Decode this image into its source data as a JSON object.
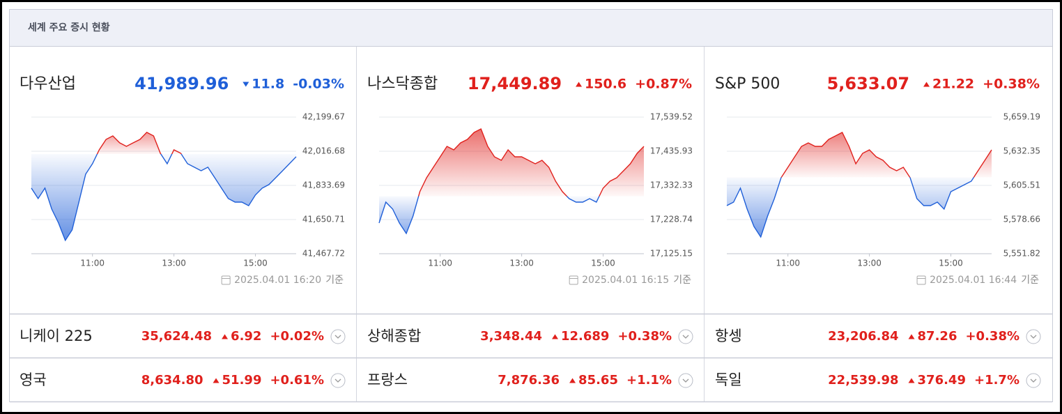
{
  "header": {
    "title": "세계 주요 증시 현황"
  },
  "colors": {
    "up": "#e0201c",
    "down": "#1f5fd8"
  },
  "main_indices": [
    {
      "name": "다우산업",
      "price": "41,989.96",
      "direction": "down",
      "change": "11.8",
      "change_pct": "-0.03%",
      "time": "2025.04.01 16:20",
      "time_suffix": "기준",
      "chart_data": {
        "type": "line",
        "x": [
          "09:30",
          "09:40",
          "09:50",
          "10:00",
          "10:10",
          "10:20",
          "10:30",
          "10:40",
          "10:50",
          "11:00",
          "11:10",
          "11:20",
          "11:30",
          "11:40",
          "11:50",
          "12:00",
          "12:10",
          "12:20",
          "12:30",
          "12:40",
          "12:50",
          "13:00",
          "13:10",
          "13:20",
          "13:30",
          "13:40",
          "13:50",
          "14:00",
          "14:10",
          "14:20",
          "14:30",
          "14:40",
          "14:50",
          "15:00",
          "15:10",
          "15:20",
          "15:30",
          "15:40",
          "15:50",
          "16:00"
        ],
        "values": [
          41819,
          41763,
          41819,
          41707,
          41632,
          41539,
          41595,
          41744,
          41894,
          41950,
          42024,
          42080,
          42099,
          42062,
          42043,
          42062,
          42080,
          42118,
          42099,
          42006,
          41950,
          42024,
          42006,
          41950,
          41931,
          41912,
          41931,
          41875,
          41819,
          41763,
          41744,
          41744,
          41725,
          41782,
          41819,
          41838,
          41875,
          41912,
          41950,
          41987
        ],
        "baseline": 42001.76,
        "xlim": [
          "09:30",
          "16:00"
        ],
        "xticks": [
          "11:00",
          "13:00",
          "15:00"
        ],
        "ylim": [
          41467.72,
          42199.67
        ],
        "yticks": [
          {
            "value": 42199.67,
            "label": "42,199.67"
          },
          {
            "value": 42016.68,
            "label": "42,016.68"
          },
          {
            "value": 41833.69,
            "label": "41,833.69"
          },
          {
            "value": 41650.71,
            "label": "41,650.71"
          },
          {
            "value": 41467.72,
            "label": "41,467.72"
          }
        ],
        "grid": true
      }
    },
    {
      "name": "나스닥종합",
      "price": "17,449.89",
      "direction": "up",
      "change": "150.6",
      "change_pct": "+0.87%",
      "time": "2025.04.01 16:15",
      "time_suffix": "기준",
      "chart_data": {
        "type": "line",
        "x": [
          "09:30",
          "09:40",
          "09:50",
          "10:00",
          "10:10",
          "10:20",
          "10:30",
          "10:40",
          "10:50",
          "11:00",
          "11:10",
          "11:20",
          "11:30",
          "11:40",
          "11:50",
          "12:00",
          "12:10",
          "12:20",
          "12:30",
          "12:40",
          "12:50",
          "13:00",
          "13:10",
          "13:20",
          "13:30",
          "13:40",
          "13:50",
          "14:00",
          "14:10",
          "14:20",
          "14:30",
          "14:40",
          "14:50",
          "15:00",
          "15:10",
          "15:20",
          "15:30",
          "15:40",
          "15:50",
          "16:00"
        ],
        "values": [
          17218.2,
          17281.6,
          17260.5,
          17218.2,
          17186.5,
          17239.3,
          17313.3,
          17355.6,
          17387.3,
          17419,
          17450.7,
          17440.1,
          17461.3,
          17471.9,
          17493,
          17503.6,
          17450.7,
          17419,
          17408.4,
          17440.1,
          17419,
          17419,
          17408.4,
          17397.9,
          17408.4,
          17387.3,
          17345,
          17313.3,
          17292.2,
          17281.6,
          17281.6,
          17292.2,
          17281.6,
          17323.9,
          17345,
          17355.6,
          17376.7,
          17397.9,
          17429.6,
          17450.7
        ],
        "baseline": 17299.29,
        "xlim": [
          "09:30",
          "16:00"
        ],
        "xticks": [
          "11:00",
          "13:00",
          "15:00"
        ],
        "ylim": [
          17125.15,
          17539.52
        ],
        "yticks": [
          {
            "value": 17539.52,
            "label": "17,539.52"
          },
          {
            "value": 17435.93,
            "label": "17,435.93"
          },
          {
            "value": 17332.33,
            "label": "17,332.33"
          },
          {
            "value": 17228.74,
            "label": "17,228.74"
          },
          {
            "value": 17125.15,
            "label": "17,125.15"
          }
        ],
        "grid": true
      }
    },
    {
      "name": "S&P 500",
      "price": "5,633.07",
      "direction": "up",
      "change": "21.22",
      "change_pct": "+0.38%",
      "time": "2025.04.01 16:44",
      "time_suffix": "기준",
      "chart_data": {
        "type": "line",
        "x": [
          "09:30",
          "09:40",
          "09:50",
          "10:00",
          "10:10",
          "10:20",
          "10:30",
          "10:40",
          "10:50",
          "11:00",
          "11:10",
          "11:20",
          "11:30",
          "11:40",
          "11:50",
          "12:00",
          "12:10",
          "12:20",
          "12:30",
          "12:40",
          "12:50",
          "13:00",
          "13:10",
          "13:20",
          "13:30",
          "13:40",
          "13:50",
          "14:00",
          "14:10",
          "14:20",
          "14:30",
          "14:40",
          "14:50",
          "15:00",
          "15:10",
          "15:20",
          "15:30",
          "15:40",
          "15:50",
          "16:00"
        ],
        "values": [
          5589.62,
          5592.36,
          5603.31,
          5586.88,
          5573.19,
          5564.97,
          5581.4,
          5595.1,
          5611.53,
          5619.75,
          5627.97,
          5636.18,
          5638.92,
          5636.18,
          5636.18,
          5641.66,
          5644.4,
          5647.14,
          5636.18,
          5622.49,
          5630.7,
          5633.44,
          5627.97,
          5625.23,
          5619.75,
          5617.01,
          5619.75,
          5611.53,
          5595.1,
          5589.62,
          5589.62,
          5592.36,
          5586.88,
          5600.58,
          5603.31,
          5606.05,
          5608.79,
          5617.01,
          5625.23,
          5633.44
        ],
        "baseline": 5611.85,
        "xlim": [
          "09:30",
          "16:00"
        ],
        "xticks": [
          "11:00",
          "13:00",
          "15:00"
        ],
        "ylim": [
          5551.82,
          5659.19
        ],
        "yticks": [
          {
            "value": 5659.19,
            "label": "5,659.19"
          },
          {
            "value": 5632.35,
            "label": "5,632.35"
          },
          {
            "value": 5605.51,
            "label": "5,605.51"
          },
          {
            "value": 5578.66,
            "label": "5,578.66"
          },
          {
            "value": 5551.82,
            "label": "5,551.82"
          }
        ],
        "grid": true
      }
    }
  ],
  "other_indices": [
    {
      "name": "니케이 225",
      "price": "35,624.48",
      "direction": "up",
      "change": "6.92",
      "change_pct": "+0.02%"
    },
    {
      "name": "상해종합",
      "price": "3,348.44",
      "direction": "up",
      "change": "12.689",
      "change_pct": "+0.38%"
    },
    {
      "name": "항셍",
      "price": "23,206.84",
      "direction": "up",
      "change": "87.26",
      "change_pct": "+0.38%"
    },
    {
      "name": "영국",
      "price": "8,634.80",
      "direction": "up",
      "change": "51.99",
      "change_pct": "+0.61%"
    },
    {
      "name": "프랑스",
      "price": "7,876.36",
      "direction": "up",
      "change": "85.65",
      "change_pct": "+1.1%"
    },
    {
      "name": "독일",
      "price": "22,539.98",
      "direction": "up",
      "change": "376.49",
      "change_pct": "+1.7%"
    }
  ]
}
